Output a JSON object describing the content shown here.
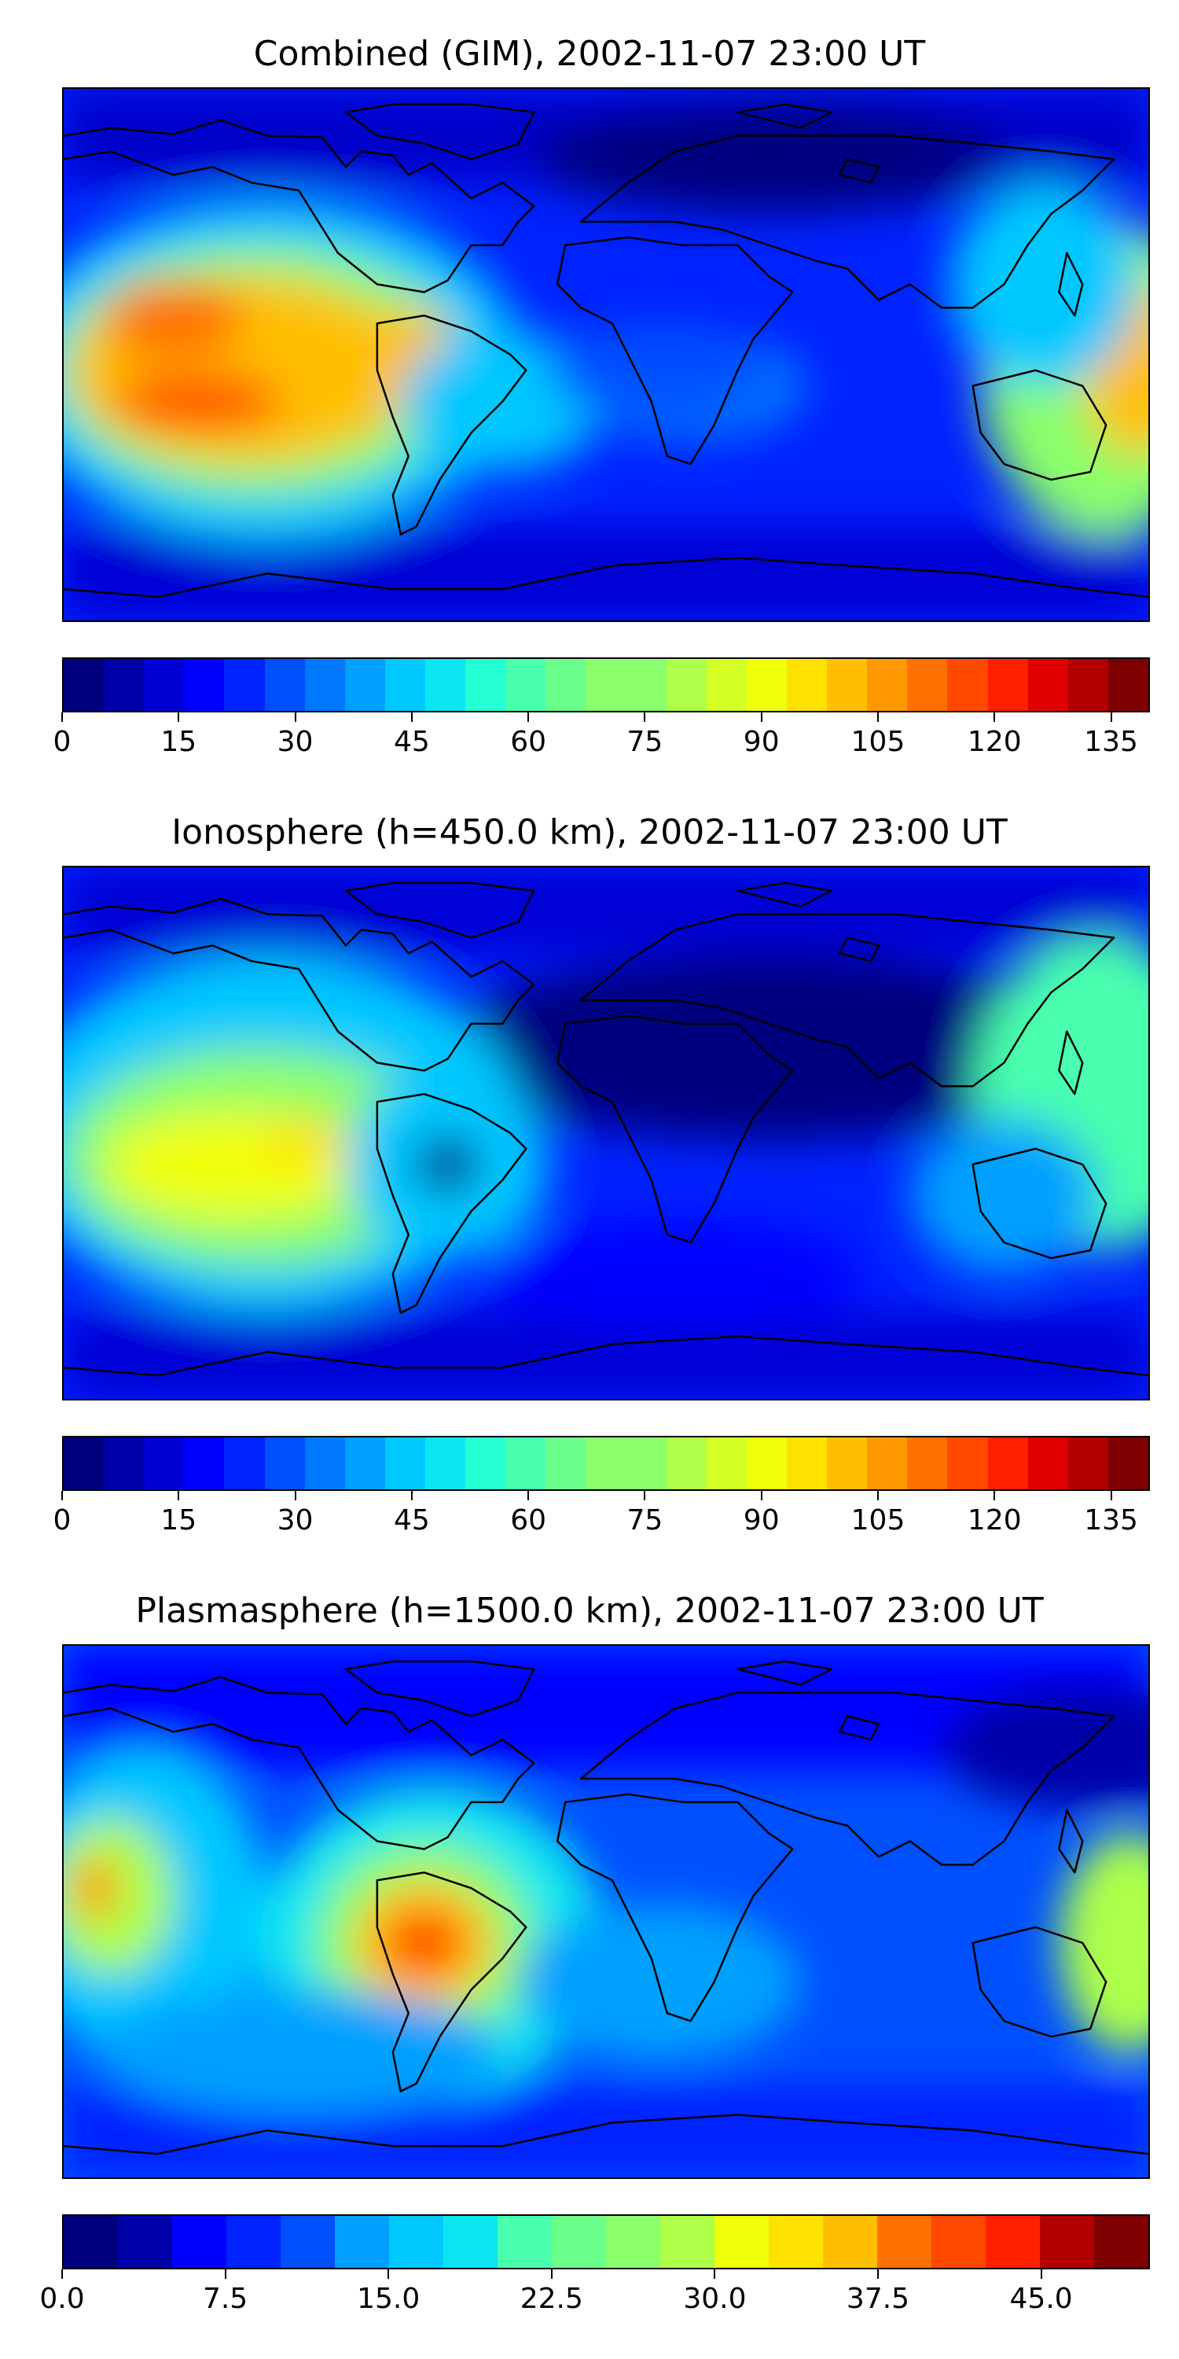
{
  "jet": [
    "#00007f",
    "#0000a8",
    "#0000d4",
    "#0000ff",
    "#0022ff",
    "#0050ff",
    "#0078ff",
    "#00a0ff",
    "#00c8ff",
    "#0ae6f0",
    "#24ffd4",
    "#48ffad",
    "#6aff8b",
    "#8aff6b",
    "#adff48",
    "#d4ff24",
    "#f0ff0a",
    "#ffe100",
    "#ffbf00",
    "#ff9800",
    "#ff7000",
    "#ff4800",
    "#ff2000",
    "#e00000",
    "#b20000",
    "#7f0000"
  ],
  "panels": [
    {
      "title": "Combined (GIM), 2002-11-07 23:00 UT",
      "colorbar": {
        "bins": 27,
        "ticks": [
          "0",
          "15",
          "30",
          "45",
          "60",
          "75",
          "90",
          "105",
          "120",
          "135"
        ],
        "tick_values": [
          0,
          15,
          30,
          45,
          60,
          75,
          90,
          105,
          120,
          135
        ],
        "vmin": 0,
        "vmax": 140
      }
    },
    {
      "title": "Ionosphere  (h=450.0 km), 2002-11-07 23:00 UT",
      "colorbar": {
        "bins": 27,
        "ticks": [
          "0",
          "15",
          "30",
          "45",
          "60",
          "75",
          "90",
          "105",
          "120",
          "135"
        ],
        "tick_values": [
          0,
          15,
          30,
          45,
          60,
          75,
          90,
          105,
          120,
          135
        ],
        "vmin": 0,
        "vmax": 140
      }
    },
    {
      "title": "Plasmasphere (h=1500.0 km), 2002-11-07 23:00 UT",
      "colorbar": {
        "bins": 20,
        "ticks": [
          "0.0",
          "7.5",
          "15.0",
          "22.5",
          "30.0",
          "37.5",
          "45.0"
        ],
        "tick_values": [
          0,
          7.5,
          15,
          22.5,
          30,
          37.5,
          45
        ],
        "vmin": 0,
        "vmax": 50
      }
    }
  ]
}
